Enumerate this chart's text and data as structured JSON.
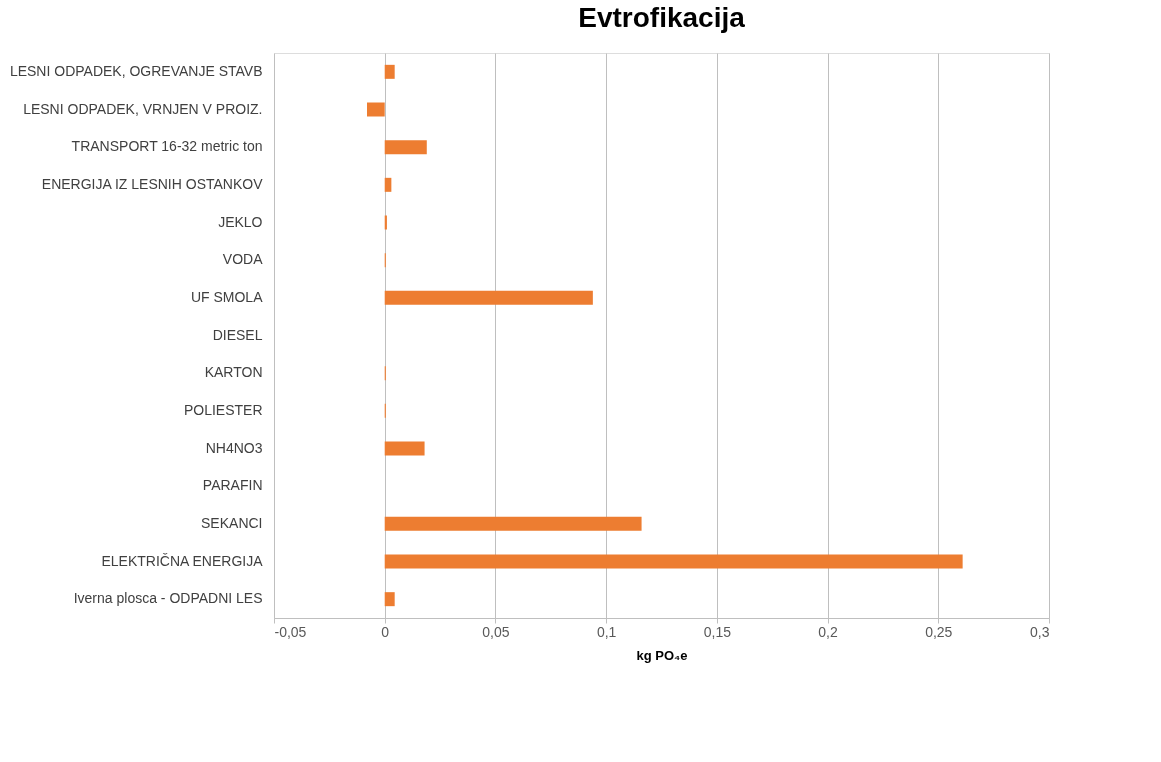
{
  "chart_data": {
    "type": "bar",
    "orientation": "horizontal",
    "title": "Evtrofikacija",
    "xlabel": "kg PO₄e",
    "categories": [
      "LESNI ODPADEK,  OGREVANJE STAVB",
      "LESNI ODPADEK, VRNJEN V PROIZ.",
      "TRANSPORT 16-32 metric ton",
      "ENERGIJA IZ LESNIH OSTANKOV",
      "JEKLO",
      "VODA",
      "UF SMOLA",
      "DIESEL",
      "KARTON",
      "POLIESTER",
      "NH4NO3",
      "PARAFIN",
      "SEKANCI",
      "ELEKTRIČNA ENERGIJA",
      "Iverna plosca - ODPADNI LES"
    ],
    "values": [
      0.0045,
      -0.008,
      0.019,
      0.003,
      0.001,
      0.0005,
      0.094,
      null,
      0.0005,
      0.0005,
      0.018,
      null,
      0.116,
      0.261,
      0.0045
    ],
    "color": "#ed7d31",
    "xlim": [
      -0.05,
      0.3
    ],
    "xticks": [
      {
        "value": -0.05,
        "label": "-0,05"
      },
      0,
      {
        "value": 0.05,
        "label": "0,05"
      },
      {
        "value": 0.1,
        "label": "0,1"
      },
      {
        "value": 0.15,
        "label": "0,15"
      },
      {
        "value": 0.2,
        "label": "0,2"
      },
      {
        "value": 0.25,
        "label": "0,25"
      },
      {
        "value": 0.3,
        "label": "0,3"
      }
    ],
    "grid": "x"
  }
}
